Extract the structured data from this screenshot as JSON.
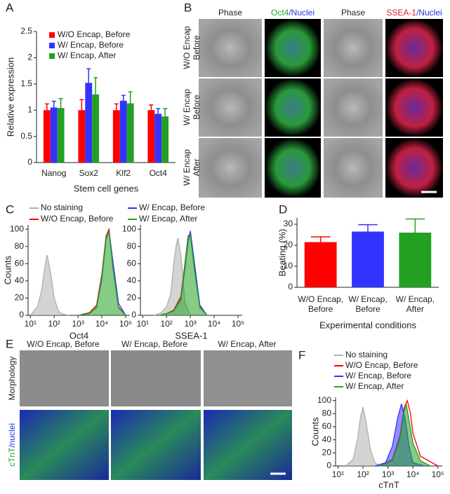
{
  "panel_labels": [
    "A",
    "B",
    "C",
    "D",
    "E",
    "F"
  ],
  "panel_b": {
    "columns": [
      [
        "Phase"
      ],
      [
        "Oct4",
        "/Nuclei"
      ],
      [
        "Phase"
      ],
      [
        "SSEA-1",
        "/Nuclei"
      ]
    ],
    "column_colors": [
      [
        "#222222"
      ],
      [
        "#22aa22",
        "#2233dd"
      ],
      [
        "#222222"
      ],
      [
        "#dd2222",
        "#2233dd"
      ]
    ],
    "rows": [
      [
        "W/O Encap",
        "Before"
      ],
      [
        "W/ Encap",
        "Before"
      ],
      [
        "W/ Encap",
        "After"
      ]
    ]
  },
  "panel_e": {
    "columns": [
      "W/O Encap, Before",
      "W/ Encap, Before",
      "W/ Encap, After"
    ],
    "rows": [
      [
        "Morphology"
      ],
      [
        "cTnT",
        "/nuclei"
      ]
    ],
    "row_colors": [
      [
        "#222222"
      ],
      [
        "#22aa22",
        "#2233dd"
      ]
    ]
  },
  "chart_data": [
    {
      "type": "bar",
      "ylabel": "Relative expression",
      "xlabel": "Stem cell genes",
      "categories": [
        "Nanog",
        "Sox2",
        "Klf2",
        "Oct4"
      ],
      "series": [
        {
          "name": "W/O Encap, Before",
          "color": "#ff0000",
          "values": [
            1,
            1,
            1,
            1
          ],
          "errors": [
            0.12,
            0.2,
            0.12,
            0.1
          ]
        },
        {
          "name": "W/ Encap, Before",
          "color": "#3333ff",
          "values": [
            1.05,
            1.52,
            1.18,
            0.93
          ],
          "errors": [
            0.12,
            0.27,
            0.1,
            0.1
          ]
        },
        {
          "name": "W/ Encap, After",
          "color": "#22a022",
          "values": [
            1.04,
            1.3,
            1.13,
            0.88
          ],
          "errors": [
            0.18,
            0.32,
            0.22,
            0.15
          ]
        }
      ],
      "ylim": [
        0,
        2.5
      ],
      "yticks": [
        0,
        0.5,
        1,
        1.5,
        2,
        2.5
      ]
    },
    {
      "type": "area",
      "ylabel": "Counts",
      "xlabel": "Oct4",
      "xscale": "log",
      "xlim": [
        8,
        150000
      ],
      "xticks": [
        {
          "value": 10,
          "label": "10¹"
        },
        {
          "value": 100,
          "label": "10²"
        },
        {
          "value": 1000,
          "label": "10³"
        },
        {
          "value": 10000,
          "label": "10⁴"
        },
        {
          "value": 100000,
          "label": "10⁵"
        }
      ],
      "ylim": [
        0,
        105
      ],
      "yticks": [
        0,
        20,
        40,
        60,
        80,
        100
      ],
      "series": [
        {
          "name": "No staining",
          "color": "#b0b0b0",
          "filled": true,
          "x": [
            10,
            20,
            30,
            40,
            50,
            60,
            80,
            100,
            150,
            200,
            400
          ],
          "values": [
            0,
            10,
            30,
            55,
            70,
            60,
            40,
            20,
            5,
            2,
            0
          ]
        },
        {
          "name": "W/O Encap, Before",
          "color": "#ff0000",
          "filled": false,
          "x": [
            1000,
            3000,
            6000,
            10000,
            15000,
            20000,
            30000,
            50000,
            100000
          ],
          "values": [
            0,
            3,
            12,
            48,
            92,
            100,
            55,
            10,
            0
          ]
        },
        {
          "name": "W/ Encap, Before",
          "color": "#3333ff",
          "filled": false,
          "x": [
            1000,
            3000,
            6000,
            10000,
            15000,
            20000,
            30000,
            50000,
            100000
          ],
          "values": [
            0,
            2,
            9,
            42,
            88,
            98,
            60,
            14,
            0
          ]
        },
        {
          "name": "W/ Encap, After",
          "color": "#22a022",
          "filled": true,
          "x": [
            1000,
            3000,
            6000,
            10000,
            15000,
            20000,
            30000,
            50000,
            100000
          ],
          "values": [
            0,
            2,
            10,
            45,
            90,
            97,
            52,
            9,
            0
          ]
        }
      ]
    },
    {
      "type": "area",
      "xlabel": "SSEA-1",
      "xscale": "log",
      "xlim": [
        8,
        150000
      ],
      "xticks": [
        {
          "value": 10,
          "label": "10¹"
        },
        {
          "value": 100,
          "label": "10²"
        },
        {
          "value": 1000,
          "label": "10³"
        },
        {
          "value": 10000,
          "label": "10⁴"
        },
        {
          "value": 100000,
          "label": "10⁵"
        }
      ],
      "ylim": [
        0,
        105
      ],
      "yticks": [
        0,
        20,
        40,
        60,
        80,
        100
      ],
      "series": [
        {
          "color": "#b0b0b0",
          "filled": true,
          "x": [
            30,
            60,
            100,
            150,
            200,
            250,
            300,
            400,
            600,
            1000
          ],
          "values": [
            0,
            3,
            10,
            25,
            60,
            80,
            90,
            70,
            15,
            0
          ]
        },
        {
          "color": "#ff0000",
          "filled": false,
          "x": [
            50,
            100,
            200,
            400,
            600,
            800,
            1000,
            1500,
            2500,
            5000
          ],
          "values": [
            0,
            2,
            6,
            22,
            62,
            92,
            95,
            55,
            10,
            0
          ]
        },
        {
          "color": "#3333ff",
          "filled": false,
          "x": [
            50,
            100,
            200,
            400,
            600,
            800,
            1000,
            1500,
            2500,
            5000
          ],
          "values": [
            0,
            2,
            5,
            18,
            55,
            85,
            98,
            60,
            12,
            0
          ]
        },
        {
          "color": "#22a022",
          "filled": true,
          "x": [
            50,
            100,
            200,
            400,
            600,
            800,
            1000,
            1500,
            2500,
            5000
          ],
          "values": [
            0,
            2,
            5,
            20,
            60,
            90,
            93,
            52,
            9,
            0
          ]
        }
      ]
    },
    {
      "type": "bar",
      "ylabel": "Beating (%)",
      "xlabel": "Experimental conditions",
      "categories": [
        [
          "W/O Encap,",
          "Before"
        ],
        [
          "W/ Encap,",
          "Before"
        ],
        [
          "W/ Encap,",
          "After"
        ]
      ],
      "values": [
        21.5,
        26.5,
        26
      ],
      "errors": [
        2.5,
        3.3,
        6.5
      ],
      "colors": [
        "#ff0000",
        "#3333ff",
        "#22a022"
      ],
      "ylim": [
        0,
        33
      ],
      "yticks": [
        0,
        10,
        20,
        30
      ]
    },
    {
      "type": "area",
      "ylabel": "Counts",
      "xlabel": "cTnT",
      "xscale": "log",
      "xlim": [
        8,
        150000
      ],
      "xticks": [
        {
          "value": 10,
          "label": "10¹"
        },
        {
          "value": 100,
          "label": "10²"
        },
        {
          "value": 1000,
          "label": "10³"
        },
        {
          "value": 10000,
          "label": "10⁴"
        },
        {
          "value": 100000,
          "label": "10⁵"
        }
      ],
      "ylim": [
        0,
        105
      ],
      "yticks": [
        0,
        20,
        40,
        60,
        80,
        100
      ],
      "series": [
        {
          "name": "No staining",
          "color": "#b0b0b0",
          "filled": true,
          "x": [
            20,
            40,
            60,
            80,
            100,
            130,
            200,
            300,
            500
          ],
          "values": [
            0,
            10,
            40,
            75,
            90,
            70,
            25,
            5,
            0
          ]
        },
        {
          "name": "W/O Encap, Before",
          "color": "#ff0000",
          "filled": false,
          "x": [
            500,
            1500,
            3000,
            4500,
            6000,
            8000,
            10000,
            20000,
            100000
          ],
          "values": [
            0,
            10,
            45,
            90,
            100,
            80,
            50,
            15,
            0
          ]
        },
        {
          "name": "W/ Encap, Before",
          "color": "#3333ff",
          "filled": true,
          "x": [
            300,
            800,
            1500,
            2500,
            3500,
            5000,
            7000,
            10000,
            30000
          ],
          "values": [
            0,
            5,
            30,
            75,
            95,
            70,
            30,
            5,
            0
          ]
        },
        {
          "name": "W/ Encap, After",
          "color": "#22a022",
          "filled": true,
          "x": [
            500,
            1500,
            3000,
            4500,
            5500,
            7000,
            10000,
            20000,
            50000
          ],
          "values": [
            0,
            8,
            40,
            85,
            93,
            70,
            35,
            8,
            0
          ]
        }
      ]
    }
  ]
}
